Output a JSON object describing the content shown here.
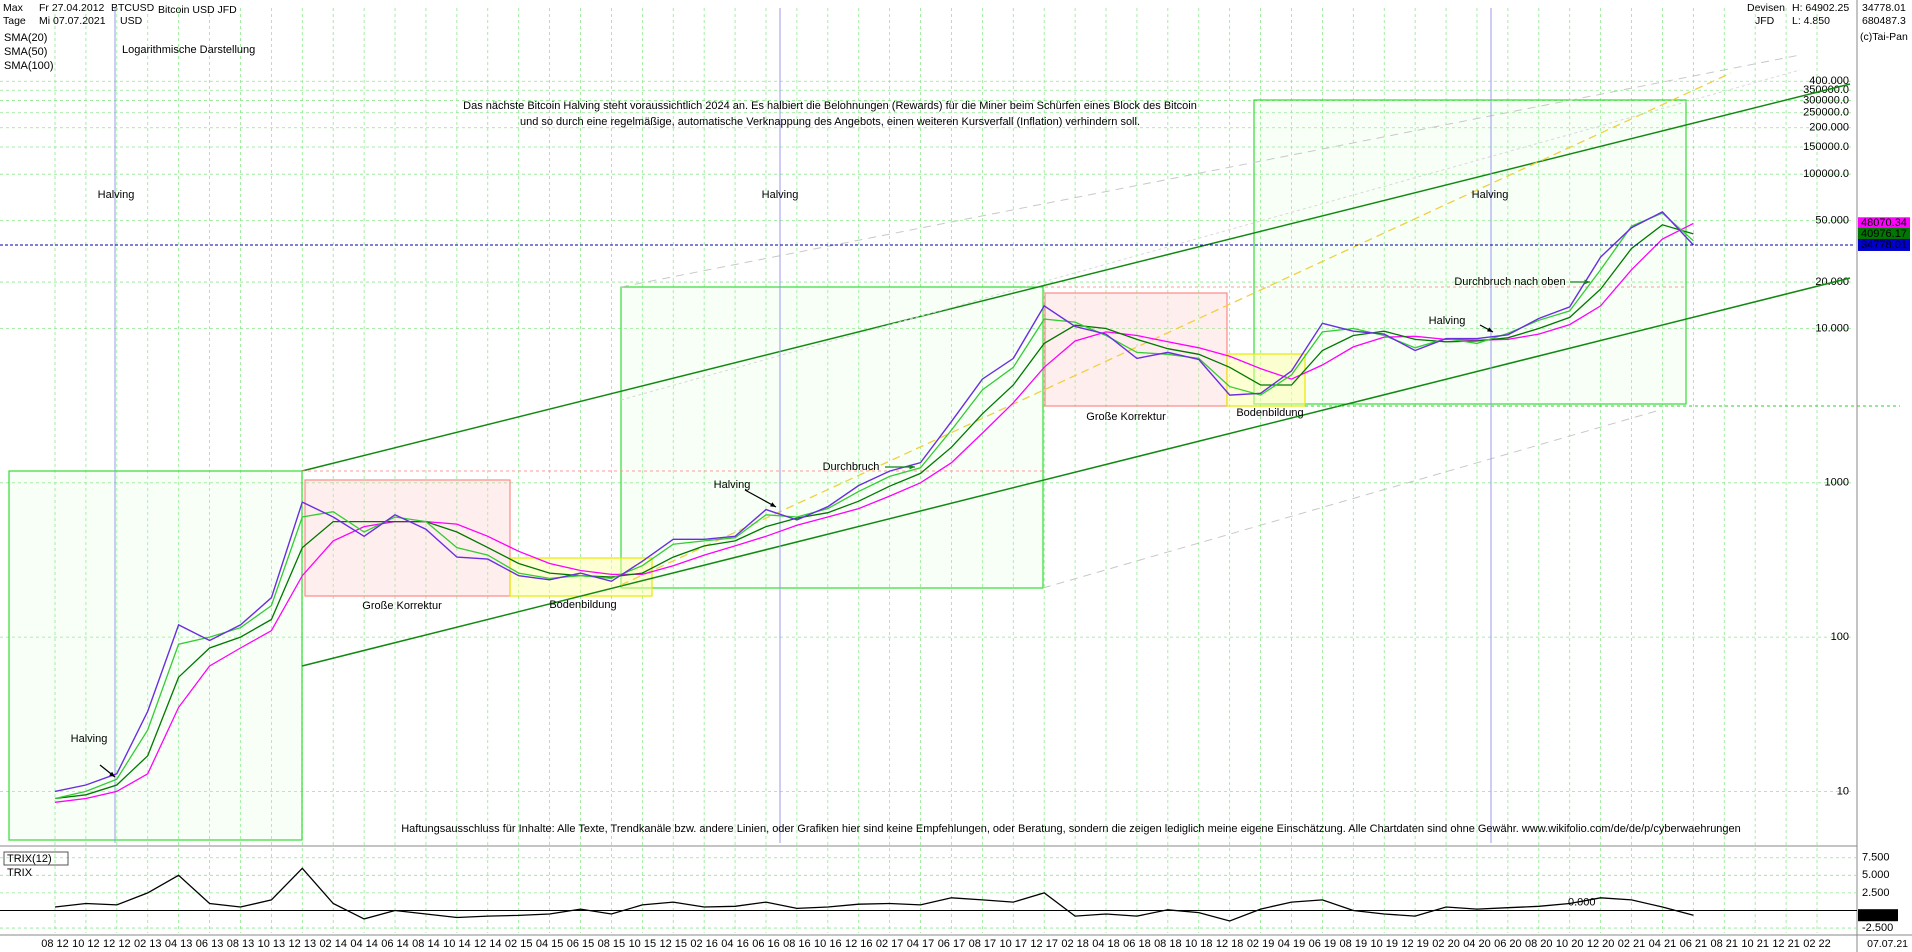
{
  "header": {
    "mode": "Max",
    "period": "Tage",
    "from": "Fr 27.04.2012",
    "to": "Mi 07.07.2021",
    "symbol": "BTCUSD",
    "currency": "USD",
    "name": "Bitcoin USD JFD",
    "market": "Devisen",
    "broker": "JFD",
    "high": "H: 64902.25",
    "low": "L: 4.850",
    "last": "34778.01",
    "max": "680487.3",
    "copyright": "(c)Tai-Pan",
    "end_date": "07.07.21"
  },
  "chart_data": [
    {
      "type": "line",
      "title": "Logarithmische Darstellung",
      "log_scale": true,
      "grid": true,
      "x": [
        "08 12",
        "10 12",
        "12 12",
        "02 13",
        "04 13",
        "06 13",
        "08 13",
        "10 13",
        "12 13",
        "02 14",
        "04 14",
        "06 14",
        "08 14",
        "10 14",
        "12 14",
        "02 15",
        "04 15",
        "06 15",
        "08 15",
        "10 15",
        "12 15",
        "02 16",
        "04 16",
        "06 16",
        "08 16",
        "10 16",
        "12 16",
        "02 17",
        "04 17",
        "06 17",
        "08 17",
        "10 17",
        "12 17",
        "02 18",
        "04 18",
        "06 18",
        "08 18",
        "10 18",
        "12 18",
        "02 19",
        "04 19",
        "06 19",
        "08 19",
        "10 19",
        "12 19",
        "02 20",
        "04 20",
        "06 20",
        "08 20",
        "10 20",
        "12 20",
        "02 21",
        "04 21",
        "06 21",
        "08 21",
        "10 21",
        "12 21",
        "02 22"
      ],
      "series": [
        {
          "name": "Bitcoin USD JFD",
          "color": "#6a2ee0",
          "values": [
            10,
            11,
            13,
            33,
            120,
            95,
            120,
            180,
            750,
            600,
            450,
            620,
            500,
            330,
            320,
            250,
            235,
            260,
            230,
            310,
            430,
            430,
            450,
            670,
            575,
            700,
            960,
            1190,
            1350,
            2500,
            4700,
            6400,
            14000,
            10300,
            9200,
            6400,
            7000,
            6300,
            3700,
            3800,
            5300,
            10800,
            9600,
            9200,
            7200,
            8600,
            8600,
            9100,
            11600,
            13800,
            29000,
            45000,
            57000,
            34778.01,
            null,
            null,
            null,
            null
          ]
        },
        {
          "name": "SMA(20)",
          "color": "#33cc33",
          "values": [
            9,
            10,
            12,
            25,
            90,
            100,
            115,
            160,
            600,
            650,
            480,
            600,
            560,
            380,
            340,
            260,
            240,
            250,
            240,
            290,
            400,
            420,
            440,
            620,
            600,
            680,
            880,
            1100,
            1250,
            2200,
            4000,
            5600,
            11500,
            11000,
            9000,
            7000,
            6800,
            6400,
            4200,
            3700,
            5000,
            9500,
            10000,
            9000,
            7500,
            8600,
            8000,
            9300,
            11300,
            13000,
            24000,
            46000,
            56000,
            37000,
            null,
            null,
            null,
            null
          ]
        },
        {
          "name": "SMA(50)",
          "color": "#007700",
          "values": [
            9,
            9.5,
            11,
            17,
            55,
            85,
            100,
            130,
            380,
            560,
            560,
            560,
            560,
            480,
            380,
            300,
            260,
            250,
            245,
            260,
            330,
            390,
            420,
            520,
            590,
            640,
            760,
            950,
            1150,
            1700,
            2800,
            4300,
            8000,
            10500,
            10000,
            8500,
            7400,
            6800,
            5600,
            4300,
            4300,
            7200,
            9000,
            9600,
            8500,
            8200,
            8300,
            8700,
            10000,
            11800,
            18000,
            33000,
            47000,
            41000,
            null,
            null,
            null,
            null
          ]
        },
        {
          "name": "SMA(100)",
          "color": "#ff00ff",
          "values": [
            8.5,
            9,
            10,
            13,
            35,
            65,
            85,
            110,
            250,
            420,
            520,
            560,
            560,
            540,
            450,
            360,
            300,
            270,
            255,
            255,
            290,
            340,
            390,
            450,
            530,
            600,
            680,
            820,
            1000,
            1350,
            2100,
            3300,
            5600,
            8300,
            9500,
            9000,
            8200,
            7500,
            6600,
            5500,
            4700,
            5800,
            7600,
            8800,
            8900,
            8500,
            8400,
            8500,
            9200,
            10600,
            14000,
            24000,
            38000,
            48000,
            null,
            null,
            null,
            null
          ]
        }
      ],
      "ylim": [
        4.63,
        1194000
      ],
      "yticks": [
        10,
        100,
        1000,
        {
          "value": 10000,
          "label": "10.000"
        },
        {
          "value": 20000,
          "label": "20.000"
        },
        {
          "value": 50000,
          "label": "50.000"
        },
        {
          "value": 100000,
          "label": "100000.0"
        },
        {
          "value": 150000,
          "label": "150000.0"
        },
        {
          "value": 200000,
          "label": "200.000"
        },
        {
          "value": 250000,
          "label": "250000.0"
        },
        {
          "value": 300000,
          "label": "300000.0"
        },
        {
          "value": 350000,
          "label": "350000.0"
        },
        {
          "value": 400000,
          "label": "400.000"
        }
      ],
      "price_tags": [
        48070.34,
        40976.17,
        34778.01
      ],
      "price_tag_colors": [
        "#ff00ff",
        "#007700",
        "#0000cc"
      ],
      "annotations": [
        "Das nächste Bitcoin Halving steht voraussichtlich 2024 an. Es halbiert die Belohnungen (Rewards) für die Miner beim Schürfen eines Block des Bitcoin",
        "und so durch eine regelmäßige, automatische Verknappung des Angebots, einen weiteren Kursverfall (Inflation) verhindern soll.",
        "Halving",
        "Halving",
        "Halving",
        "Halving",
        "Halving",
        "Halving",
        "Durchbruch",
        "Durchbruch nach oben",
        "Große Korrektur",
        "Große Korrektur",
        "Bodenbildung",
        "Bodenbildung",
        "Haftungsausschluss für Inhalte: Alle Texte, Trendkanäle bzw. andere Linien, oder Grafiken hier sind keine Empfehlungen, oder Beratung, sondern die zeigen lediglich meine eigene Einschätzung. Alle Chartdaten sind ohne Gewähr.  www.wikifolio.com/de/de/p/cyberwaehrungen"
      ]
    },
    {
      "type": "line",
      "title": "TRIX(12)",
      "subtitle": "TRIX",
      "grid": true,
      "series": [
        {
          "name": "TRIX",
          "color": "#000000",
          "values": [
            0.5,
            1,
            0.8,
            2.5,
            5,
            1,
            0.5,
            1.5,
            6,
            1,
            -1.2,
            0,
            -0.5,
            -1,
            -0.8,
            -0.7,
            -0.5,
            0.2,
            -0.5,
            0.8,
            1.2,
            0.5,
            0.6,
            1.2,
            0.3,
            0.5,
            0.9,
            1.0,
            0.8,
            1.8,
            1.5,
            1.2,
            2.5,
            -0.8,
            -0.5,
            -0.8,
            0.1,
            -0.3,
            -1.5,
            0.2,
            1.2,
            1.5,
            0,
            -0.5,
            -0.8,
            0.5,
            0.2,
            0.4,
            0.6,
            1.0,
            1.8,
            1.5,
            0.5,
            -0.67,
            null,
            null,
            null,
            null
          ]
        }
      ],
      "ylim": [
        -3.2,
        8.6
      ],
      "yticks": [
        {
          "value": 7.5,
          "label": "7.500"
        },
        {
          "value": 5,
          "label": "5.000"
        },
        {
          "value": 2.5,
          "label": "2.500"
        },
        {
          "value": -2.5,
          "label": "-2.500"
        }
      ],
      "zero_label": "0.000"
    }
  ]
}
